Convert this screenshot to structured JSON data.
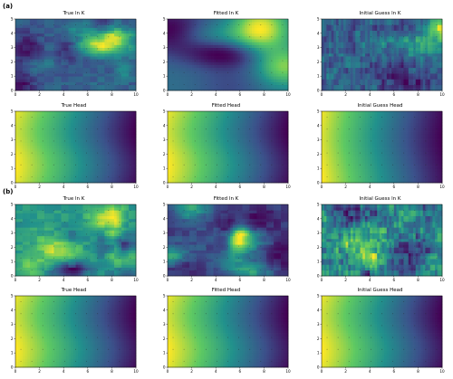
{
  "panels": [
    {
      "label": "(a)"
    },
    {
      "label": "(b)"
    }
  ],
  "chart_data": [
    {
      "type": "heatmap",
      "panel": "(a)",
      "title": "True ln K",
      "field": "lnk",
      "seed": 11,
      "xlim": [
        0,
        10
      ],
      "ylim": [
        0,
        5
      ],
      "xticks": [
        "0",
        "2",
        "4",
        "6",
        "8",
        "10"
      ],
      "yticks": [
        "0",
        "1",
        "2",
        "3",
        "4",
        "5"
      ]
    },
    {
      "type": "heatmap",
      "panel": "(a)",
      "title": "Fitted ln K",
      "field": "lnk_smooth",
      "seed": 23,
      "xlim": [
        0,
        10
      ],
      "ylim": [
        0,
        5
      ],
      "xticks": [
        "0",
        "2",
        "4",
        "6",
        "8",
        "10"
      ],
      "yticks": [
        "0",
        "1",
        "2",
        "3",
        "4",
        "5"
      ]
    },
    {
      "type": "heatmap",
      "panel": "(a)",
      "title": "Initial Guess ln K",
      "field": "lnk_noisy",
      "seed": 37,
      "xlim": [
        0,
        10
      ],
      "ylim": [
        0,
        5
      ],
      "xticks": [
        "0",
        "2",
        "4",
        "6",
        "8",
        "10"
      ],
      "yticks": [
        "0",
        "1",
        "2",
        "3",
        "4",
        "5"
      ]
    },
    {
      "type": "heatmap",
      "panel": "(a)",
      "title": "True Head",
      "field": "head",
      "seed": 0,
      "xlim": [
        0,
        10
      ],
      "ylim": [
        0,
        5
      ],
      "xticks": [
        "0",
        "2",
        "4",
        "6",
        "8",
        "10"
      ],
      "yticks": [
        "0",
        "1",
        "2",
        "3",
        "4",
        "5"
      ]
    },
    {
      "type": "heatmap",
      "panel": "(a)",
      "title": "Fitted Head",
      "field": "head",
      "seed": 0,
      "xlim": [
        0,
        10
      ],
      "ylim": [
        0,
        5
      ],
      "xticks": [
        "0",
        "2",
        "4",
        "6",
        "8",
        "10"
      ],
      "yticks": [
        "0",
        "1",
        "2",
        "3",
        "4",
        "5"
      ]
    },
    {
      "type": "heatmap",
      "panel": "(a)",
      "title": "Initial Guess Head",
      "field": "head2",
      "seed": 0,
      "xlim": [
        0,
        10
      ],
      "ylim": [
        0,
        5
      ],
      "xticks": [
        "0",
        "2",
        "4",
        "6",
        "8",
        "10"
      ],
      "yticks": [
        "0",
        "1",
        "2",
        "3",
        "4",
        "5"
      ]
    },
    {
      "type": "heatmap",
      "panel": "(b)",
      "title": "True ln K",
      "field": "lnk",
      "seed": 53,
      "xlim": [
        0,
        10
      ],
      "ylim": [
        0,
        5
      ],
      "xticks": [
        "0",
        "2",
        "4",
        "6",
        "8",
        "10"
      ],
      "yticks": [
        "0",
        "1",
        "2",
        "3",
        "4",
        "5"
      ]
    },
    {
      "type": "heatmap",
      "panel": "(b)",
      "title": "Fitted ln K",
      "field": "lnk",
      "seed": 61,
      "xlim": [
        0,
        10
      ],
      "ylim": [
        0,
        5
      ],
      "xticks": [
        "0",
        "2",
        "4",
        "6",
        "8",
        "10"
      ],
      "yticks": [
        "0",
        "1",
        "2",
        "3",
        "4",
        "5"
      ]
    },
    {
      "type": "heatmap",
      "panel": "(b)",
      "title": "Initial Guess ln K",
      "field": "lnk_noisy",
      "seed": 79,
      "xlim": [
        0,
        10
      ],
      "ylim": [
        0,
        5
      ],
      "xticks": [
        "0",
        "2",
        "4",
        "6",
        "8",
        "10"
      ],
      "yticks": [
        "0",
        "1",
        "2",
        "3",
        "4",
        "5"
      ]
    },
    {
      "type": "heatmap",
      "panel": "(b)",
      "title": "True Head",
      "field": "head",
      "seed": 0,
      "xlim": [
        0,
        10
      ],
      "ylim": [
        0,
        5
      ],
      "xticks": [
        "0",
        "2",
        "4",
        "6",
        "8",
        "10"
      ],
      "yticks": [
        "0",
        "1",
        "2",
        "3",
        "4",
        "5"
      ]
    },
    {
      "type": "heatmap",
      "panel": "(b)",
      "title": "Fitted Head",
      "field": "head",
      "seed": 0,
      "xlim": [
        0,
        10
      ],
      "ylim": [
        0,
        5
      ],
      "xticks": [
        "0",
        "2",
        "4",
        "6",
        "8",
        "10"
      ],
      "yticks": [
        "0",
        "1",
        "2",
        "3",
        "4",
        "5"
      ]
    },
    {
      "type": "heatmap",
      "panel": "(b)",
      "title": "Initial Guess Head",
      "field": "head",
      "seed": 0,
      "xlim": [
        0,
        10
      ],
      "ylim": [
        0,
        5
      ],
      "xticks": [
        "0",
        "2",
        "4",
        "6",
        "8",
        "10"
      ],
      "yticks": [
        "0",
        "1",
        "2",
        "3",
        "4",
        "5"
      ]
    }
  ],
  "colormap": [
    "#440154",
    "#3b528b",
    "#21918c",
    "#5ec962",
    "#fde725"
  ]
}
